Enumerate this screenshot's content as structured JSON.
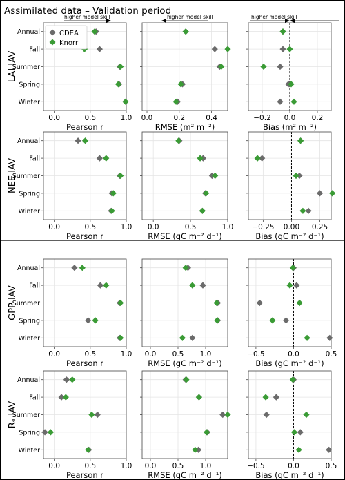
{
  "figure": {
    "title": "Assimilated data – Validation period",
    "skill_label": "higher model skill"
  },
  "legend": [
    {
      "name": "CDEA",
      "color": "#6b6b6b"
    },
    {
      "name": "Knorr",
      "color": "#3a9b35"
    }
  ],
  "chart_data": [
    {
      "id": "lai-pearson",
      "type": "scatter",
      "row_label": "LAI IAV",
      "xlabel": "Pearson r",
      "xlim": [
        -0.15,
        1.0
      ],
      "xticks": [
        "0.0",
        "0.5",
        "1.0"
      ],
      "xtick_values": [
        0.0,
        0.5,
        1.0
      ],
      "categories": [
        "Annual",
        "Fall",
        "Summer",
        "Spring",
        "Winter"
      ],
      "series": [
        {
          "name": "CDEA",
          "values": [
            0.58,
            0.63,
            0.91,
            0.9,
            0.99
          ]
        },
        {
          "name": "Knorr",
          "values": [
            0.56,
            0.42,
            0.92,
            0.89,
            0.99
          ]
        }
      ]
    },
    {
      "id": "lai-rmse",
      "type": "scatter",
      "row_label": "LAI IAV",
      "xlabel": "RMSE (m² m⁻²)",
      "xlim": [
        -0.03,
        0.5
      ],
      "xticks": [
        "0.0",
        "0.2",
        "0.4"
      ],
      "xtick_values": [
        0.0,
        0.2,
        0.4
      ],
      "categories": [
        "Annual",
        "Fall",
        "Summer",
        "Spring",
        "Winter"
      ],
      "series": [
        {
          "name": "CDEA",
          "values": [
            0.24,
            0.42,
            0.45,
            0.22,
            0.19
          ]
        },
        {
          "name": "Knorr",
          "values": [
            0.24,
            0.5,
            0.46,
            0.21,
            0.18
          ]
        }
      ]
    },
    {
      "id": "lai-bias",
      "type": "scatter",
      "row_label": "LAI IAV",
      "xlabel": "Bias (m² m⁻²)",
      "xlim": [
        -0.3,
        0.3
      ],
      "xticks": [
        "−0.2",
        "0.0",
        "0.2"
      ],
      "xtick_values": [
        -0.2,
        0.0,
        0.2
      ],
      "categories": [
        "Annual",
        "Fall",
        "Summer",
        "Spring",
        "Winter"
      ],
      "series": [
        {
          "name": "CDEA",
          "values": [
            -0.05,
            -0.05,
            -0.07,
            -0.01,
            -0.07
          ]
        },
        {
          "name": "Knorr",
          "values": [
            -0.05,
            0.0,
            -0.19,
            0.01,
            0.03
          ]
        }
      ]
    },
    {
      "id": "nee-pearson",
      "type": "scatter",
      "row_label": "NEE IAV",
      "xlabel": "Pearson r",
      "xlim": [
        -0.15,
        1.0
      ],
      "xticks": [
        "0.0",
        "0.5",
        "1.0"
      ],
      "xtick_values": [
        0.0,
        0.5,
        1.0
      ],
      "categories": [
        "Annual",
        "Fall",
        "Summer",
        "Spring",
        "Winter"
      ],
      "series": [
        {
          "name": "CDEA",
          "values": [
            0.33,
            0.63,
            0.91,
            0.8,
            0.79
          ]
        },
        {
          "name": "Knorr",
          "values": [
            0.43,
            0.72,
            0.92,
            0.82,
            0.8
          ]
        }
      ]
    },
    {
      "id": "nee-rmse",
      "type": "scatter",
      "row_label": "NEE IAV",
      "xlabel": "RMSE (gC m⁻² d⁻¹)",
      "xlim": [
        -0.15,
        1.0
      ],
      "xticks": [
        "0.0",
        "0.5",
        "1.0"
      ],
      "xtick_values": [
        0.0,
        0.5,
        1.0
      ],
      "categories": [
        "Annual",
        "Fall",
        "Summer",
        "Spring",
        "Winter"
      ],
      "series": [
        {
          "name": "CDEA",
          "values": [
            0.35,
            0.67,
            0.79,
            0.7,
            0.66
          ]
        },
        {
          "name": "Knorr",
          "values": [
            0.34,
            0.63,
            0.83,
            0.71,
            0.66
          ]
        }
      ]
    },
    {
      "id": "nee-bias",
      "type": "scatter",
      "row_label": "NEE IAV",
      "xlabel": "Bias (gC m⁻² d⁻¹)",
      "xlim": [
        -0.38,
        0.35
      ],
      "xticks": [
        "−0.25",
        "0.00",
        "0.25"
      ],
      "xtick_values": [
        -0.25,
        0.0,
        0.25
      ],
      "categories": [
        "Annual",
        "Fall",
        "Summer",
        "Spring",
        "Winter"
      ],
      "series": [
        {
          "name": "CDEA",
          "values": [
            0.08,
            -0.26,
            0.07,
            0.25,
            0.15
          ]
        },
        {
          "name": "Knorr",
          "values": [
            0.08,
            -0.3,
            0.04,
            0.36,
            0.1
          ]
        }
      ]
    },
    {
      "id": "gpp-pearson",
      "type": "scatter",
      "row_label": "GPP IAV",
      "xlabel": "Pearson r",
      "xlim": [
        -0.15,
        1.0
      ],
      "xticks": [
        "0.0",
        "0.5",
        "1.0"
      ],
      "xtick_values": [
        0.0,
        0.5,
        1.0
      ],
      "categories": [
        "Annual",
        "Fall",
        "Summer",
        "Spring",
        "Winter"
      ],
      "series": [
        {
          "name": "CDEA",
          "values": [
            0.28,
            0.64,
            0.91,
            0.47,
            0.91
          ]
        },
        {
          "name": "Knorr",
          "values": [
            0.39,
            0.72,
            0.92,
            0.57,
            0.92
          ]
        }
      ]
    },
    {
      "id": "gpp-rmse",
      "type": "scatter",
      "row_label": "GPP IAV",
      "xlabel": "RMSE (gC m⁻² d⁻¹)",
      "xlim": [
        -0.15,
        1.4
      ],
      "xticks": [
        "0.0",
        "0.5",
        "1.0"
      ],
      "xtick_values": [
        0.0,
        0.5,
        1.0
      ],
      "categories": [
        "Annual",
        "Fall",
        "Summer",
        "Spring",
        "Winter"
      ],
      "series": [
        {
          "name": "CDEA",
          "values": [
            0.68,
            0.95,
            1.22,
            1.22,
            0.76
          ]
        },
        {
          "name": "Knorr",
          "values": [
            0.64,
            0.76,
            1.2,
            1.21,
            0.58
          ]
        }
      ]
    },
    {
      "id": "gpp-bias",
      "type": "scatter",
      "row_label": "GPP IAV",
      "xlabel": "Bias (gC m⁻² d⁻¹)",
      "xlim": [
        -0.6,
        0.5
      ],
      "xticks": [
        "−0.5",
        "0.0",
        "0.5"
      ],
      "xtick_values": [
        -0.5,
        0.0,
        0.5
      ],
      "categories": [
        "Annual",
        "Fall",
        "Summer",
        "Spring",
        "Winter"
      ],
      "series": [
        {
          "name": "CDEA",
          "values": [
            0.0,
            0.04,
            -0.45,
            -0.1,
            0.48
          ]
        },
        {
          "name": "Knorr",
          "values": [
            -0.01,
            -0.05,
            0.08,
            -0.28,
            0.18
          ]
        }
      ]
    },
    {
      "id": "re-pearson",
      "type": "scatter",
      "row_label": "Rₑ IAV",
      "xlabel": "Pearson r",
      "xlim": [
        -0.15,
        1.0
      ],
      "xticks": [
        "0.0",
        "0.5",
        "1.0"
      ],
      "xtick_values": [
        0.0,
        0.5,
        1.0
      ],
      "categories": [
        "Annual",
        "Fall",
        "Summer",
        "Spring",
        "Winter"
      ],
      "series": [
        {
          "name": "CDEA",
          "values": [
            0.17,
            0.1,
            0.6,
            -0.13,
            0.48
          ]
        },
        {
          "name": "Knorr",
          "values": [
            0.25,
            0.16,
            0.52,
            -0.05,
            0.47
          ]
        }
      ]
    },
    {
      "id": "re-rmse",
      "type": "scatter",
      "row_label": "Rₑ IAV",
      "xlabel": "RMSE (gC m⁻² d⁻¹)",
      "xlim": [
        -0.15,
        1.4
      ],
      "xticks": [
        "0.0",
        "0.5",
        "1.0"
      ],
      "xtick_values": [
        0.0,
        0.5,
        1.0
      ],
      "categories": [
        "Annual",
        "Fall",
        "Summer",
        "Spring",
        "Winter"
      ],
      "series": [
        {
          "name": "CDEA",
          "values": [
            0.64,
            0.88,
            1.31,
            1.03,
            0.87
          ]
        },
        {
          "name": "Knorr",
          "values": [
            0.65,
            0.88,
            1.4,
            1.02,
            0.81
          ]
        }
      ]
    },
    {
      "id": "re-bias",
      "type": "scatter",
      "row_label": "Rₑ IAV",
      "xlabel": "Bias (gC m⁻² d⁻¹)",
      "xlim": [
        -0.6,
        0.5
      ],
      "xticks": [
        "−0.5",
        "0.0",
        "0.5"
      ],
      "xtick_values": [
        -0.5,
        0.0,
        0.5
      ],
      "categories": [
        "Annual",
        "Fall",
        "Summer",
        "Spring",
        "Winter"
      ],
      "series": [
        {
          "name": "CDEA",
          "values": [
            0.0,
            -0.23,
            -0.36,
            0.09,
            0.47
          ]
        },
        {
          "name": "Knorr",
          "values": [
            -0.01,
            -0.37,
            0.17,
            0.01,
            0.07
          ]
        }
      ]
    }
  ]
}
